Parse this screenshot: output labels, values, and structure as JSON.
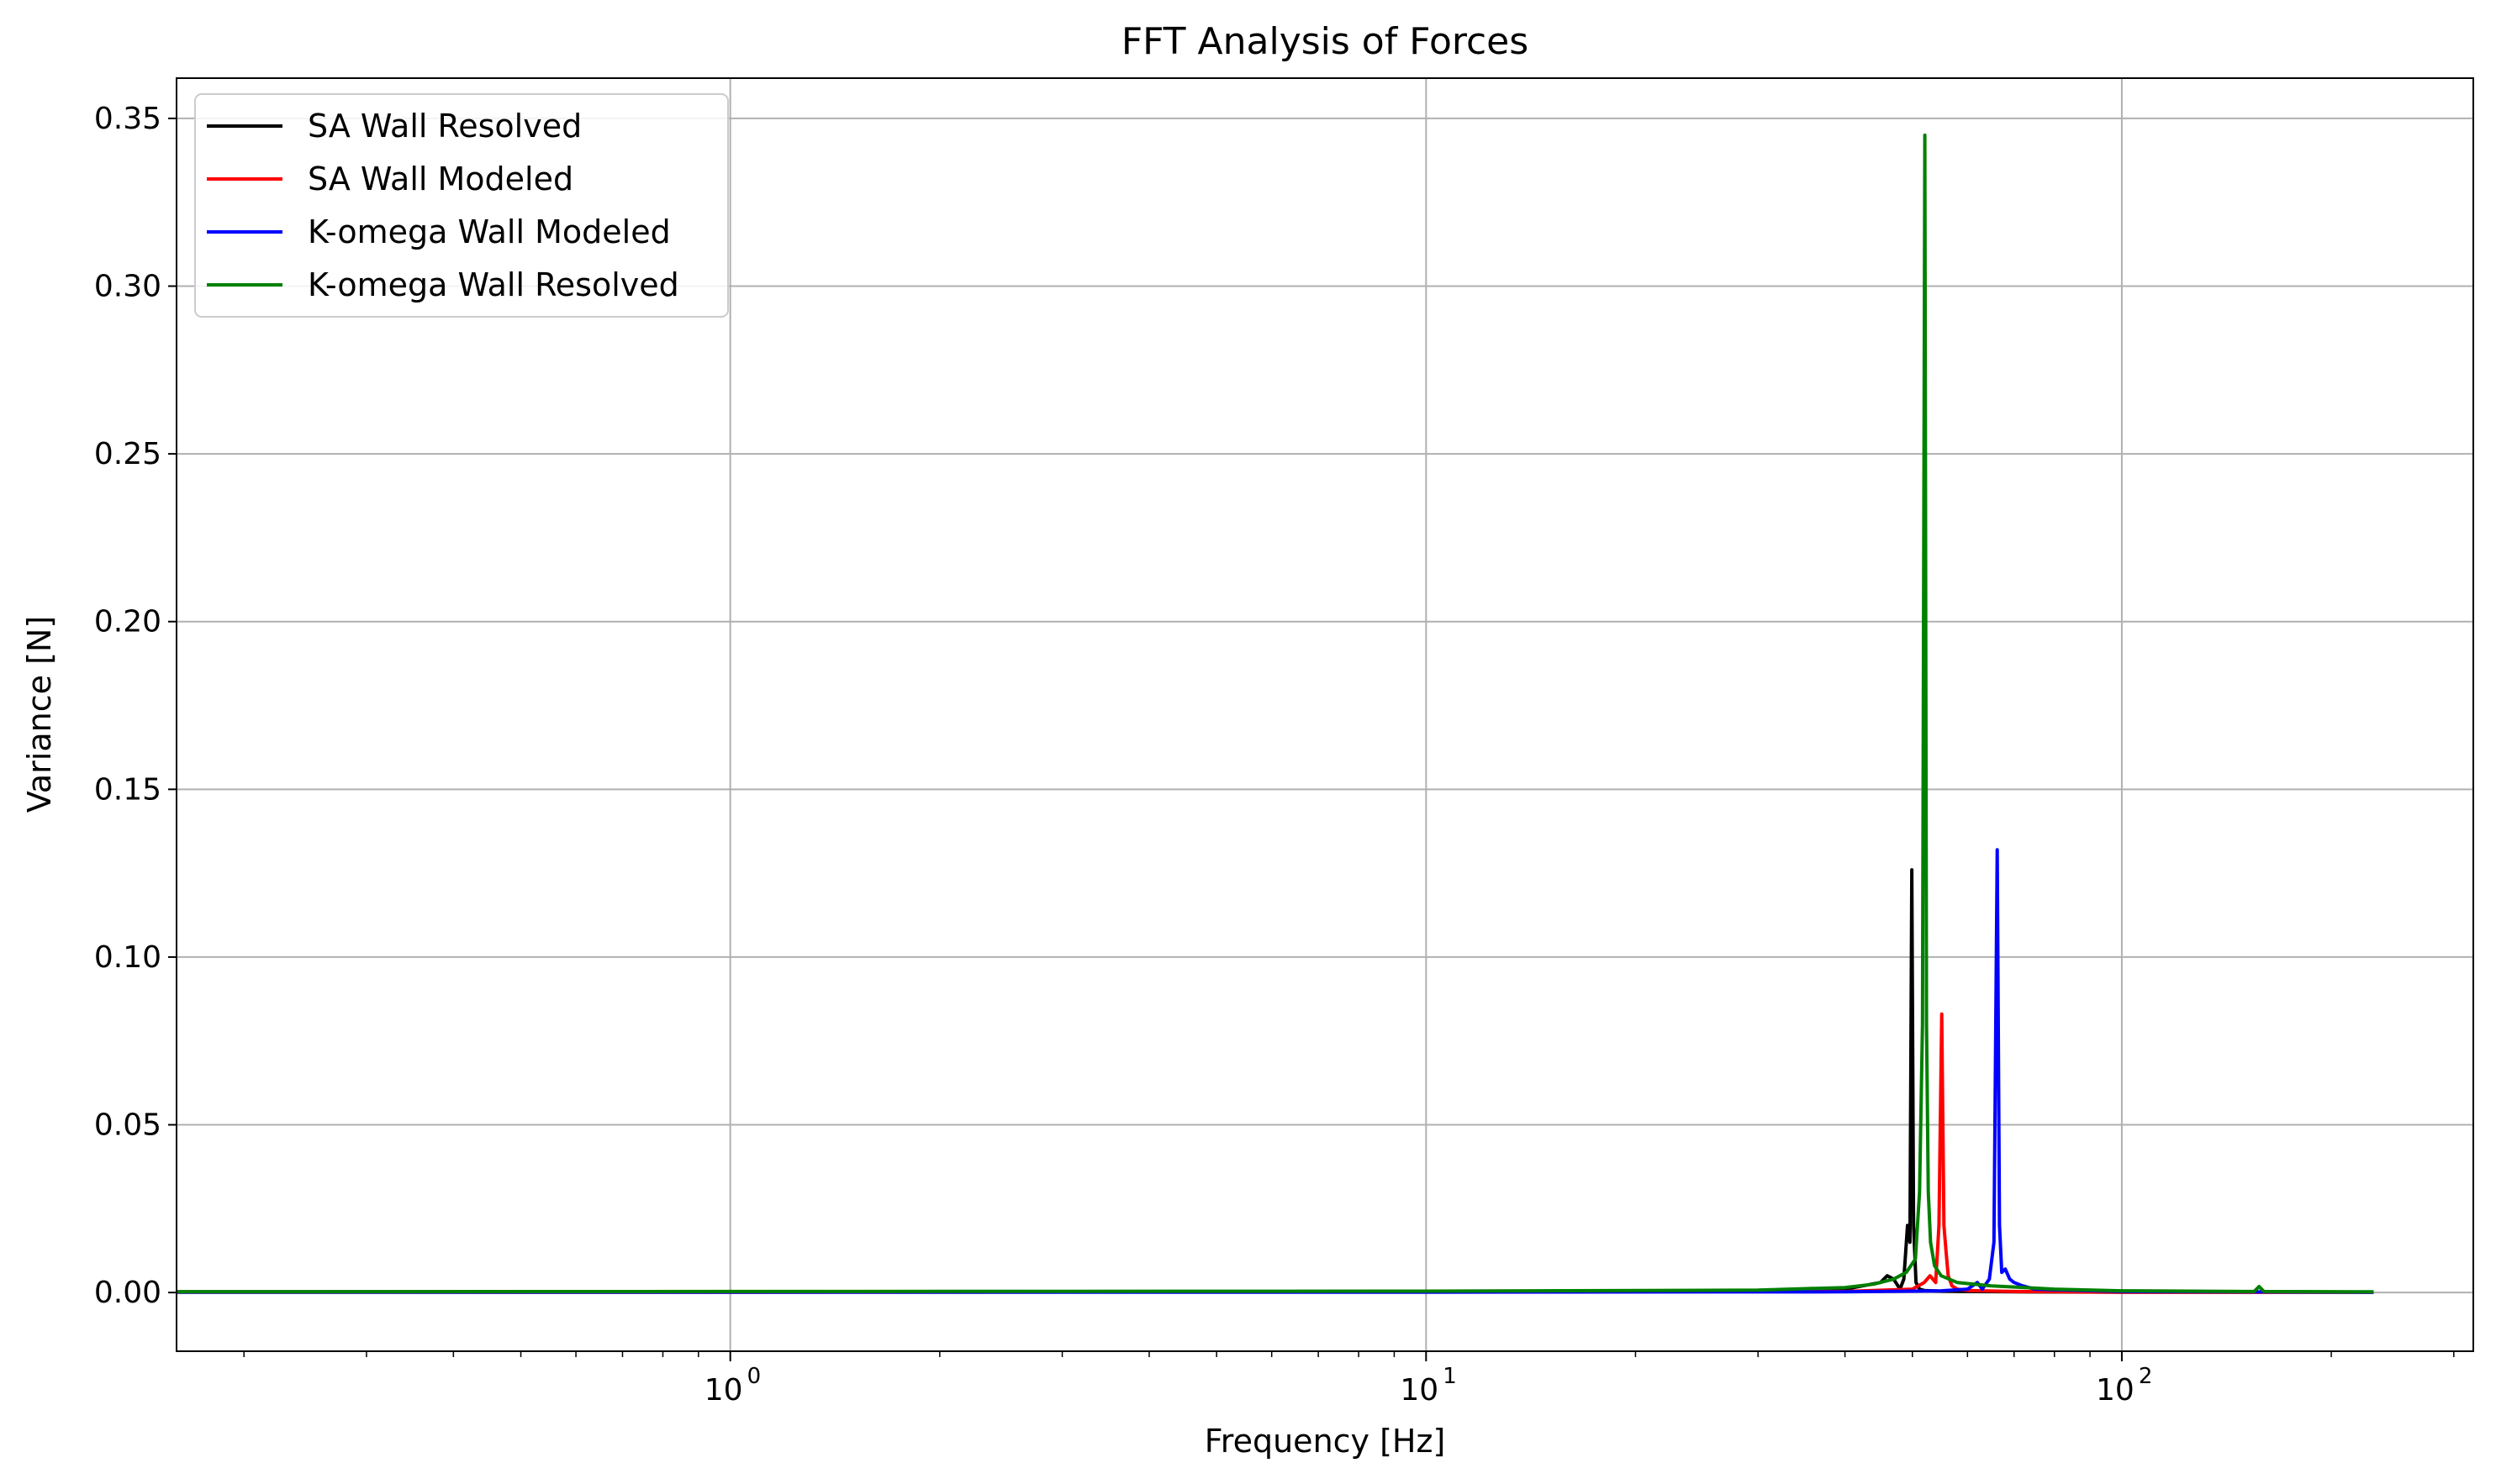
{
  "chart_data": {
    "type": "line",
    "title": "FFT Analysis of Forces",
    "xlabel": "Frequency [Hz]",
    "ylabel": "Variance [N]",
    "xscale": "log",
    "xlim": [
      0.16,
      320
    ],
    "ylim": [
      -0.0175,
      0.362
    ],
    "grid": true,
    "legend_position": "top-left",
    "x_major_ticks": [
      {
        "value": 1,
        "base": "10",
        "exp": "0"
      },
      {
        "value": 10,
        "base": "10",
        "exp": "1"
      },
      {
        "value": 100,
        "base": "10",
        "exp": "2"
      }
    ],
    "yticks": [
      "0.00",
      "0.05",
      "0.10",
      "0.15",
      "0.20",
      "0.25",
      "0.30",
      "0.35"
    ],
    "ytick_values": [
      0,
      0.05,
      0.1,
      0.15,
      0.2,
      0.25,
      0.3,
      0.35
    ],
    "series": [
      {
        "name": "SA Wall Resolved",
        "color": "#000000",
        "x": [
          0.16,
          1,
          10,
          30,
          40,
          45,
          46,
          47,
          48,
          48.6,
          49.2,
          49.6,
          49.9,
          50.2,
          50.6,
          51.2,
          52,
          55,
          60,
          70,
          100,
          230
        ],
        "y": [
          0.0002,
          0.0002,
          0.0003,
          0.0005,
          0.001,
          0.003,
          0.005,
          0.004,
          0.001,
          0.004,
          0.02,
          0.015,
          0.126,
          0.02,
          0.003,
          0.001,
          0.0006,
          0.0004,
          0.0003,
          0.0002,
          0.0001,
          0.0001
        ]
      },
      {
        "name": "SA Wall Modeled",
        "color": "#ff0000",
        "x": [
          0.16,
          1,
          10,
          40,
          50,
          52,
          53,
          54,
          54.6,
          55.1,
          55.5,
          55.9,
          56.3,
          57,
          58,
          60,
          70,
          100,
          230
        ],
        "y": [
          0.0001,
          0.0001,
          0.0002,
          0.0003,
          0.001,
          0.003,
          0.005,
          0.003,
          0.02,
          0.083,
          0.02,
          0.012,
          0.005,
          0.002,
          0.001,
          0.0006,
          0.0003,
          0.0001,
          0.0001
        ]
      },
      {
        "name": "K-omega Wall Modeled",
        "color": "#0000ff",
        "x": [
          0.16,
          1,
          10,
          40,
          55,
          60,
          62,
          63,
          64.5,
          65.5,
          66.2,
          66.7,
          67.2,
          68,
          69,
          70,
          72,
          75,
          80,
          100,
          230
        ],
        "y": [
          0.0001,
          0.0001,
          0.0001,
          0.0002,
          0.0005,
          0.001,
          0.003,
          0.001,
          0.004,
          0.015,
          0.132,
          0.02,
          0.006,
          0.007,
          0.004,
          0.003,
          0.002,
          0.001,
          0.0008,
          0.0003,
          0.0001
        ]
      },
      {
        "name": "K-omega Wall Resolved",
        "color": "#008000",
        "x": [
          0.16,
          1,
          10,
          30,
          36,
          40,
          44,
          47,
          49,
          50.5,
          51.2,
          51.7,
          52.1,
          52.4,
          52.7,
          53.1,
          53.8,
          55,
          58,
          65,
          80,
          100,
          155,
          157.5,
          160,
          230
        ],
        "y": [
          0.0002,
          0.0003,
          0.0004,
          0.0007,
          0.0012,
          0.0015,
          0.0025,
          0.004,
          0.006,
          0.01,
          0.03,
          0.08,
          0.345,
          0.08,
          0.03,
          0.015,
          0.008,
          0.005,
          0.003,
          0.002,
          0.001,
          0.0005,
          0.0003,
          0.0018,
          0.0003,
          0.0002
        ]
      }
    ]
  }
}
